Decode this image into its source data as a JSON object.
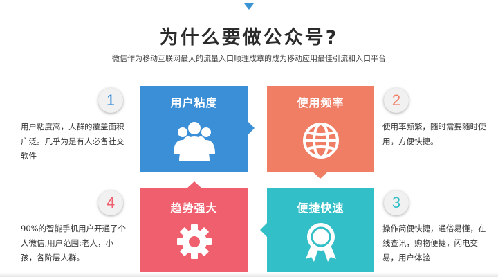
{
  "header": {
    "title": "为什么要做公众号?",
    "subtitle": "微信作为移动互联网最大的流量入口顺理成章的成为移动应用最佳引流和入口平台"
  },
  "colors": {
    "blue": "#3a8fd6",
    "orange": "#ef7e65",
    "red": "#ef5f6e",
    "teal": "#33bfc7"
  },
  "tiles": [
    {
      "label": "用户粘度",
      "icon": "users-group-icon",
      "color": "#3a8fd6"
    },
    {
      "label": "使用频率",
      "icon": "globe-icon",
      "color": "#ef7e65"
    },
    {
      "label": "趋势强大",
      "icon": "gear-icon",
      "color": "#ef5f6e"
    },
    {
      "label": "便捷快速",
      "icon": "award-medal-icon",
      "color": "#33bfc7"
    }
  ],
  "points": [
    {
      "number": "1",
      "color": "#3a8fd6",
      "text": "用户粘度高，人群的覆盖面积广泛。几乎为是有人必备社交软件"
    },
    {
      "number": "2",
      "color": "#ef7e65",
      "text": "使用率频繁，随时需要随时使用，方便快捷。"
    },
    {
      "number": "4",
      "color": "#ef5f6e",
      "text": "90%的智能手机用户开通了个人微信,用户范围:老人，小孩，各阶层人群。"
    },
    {
      "number": "3",
      "color": "#33bfc7",
      "text": "操作简便快捷，通俗易懂，在线查讯，购物便捷，闪电交易，用户体验"
    }
  ]
}
